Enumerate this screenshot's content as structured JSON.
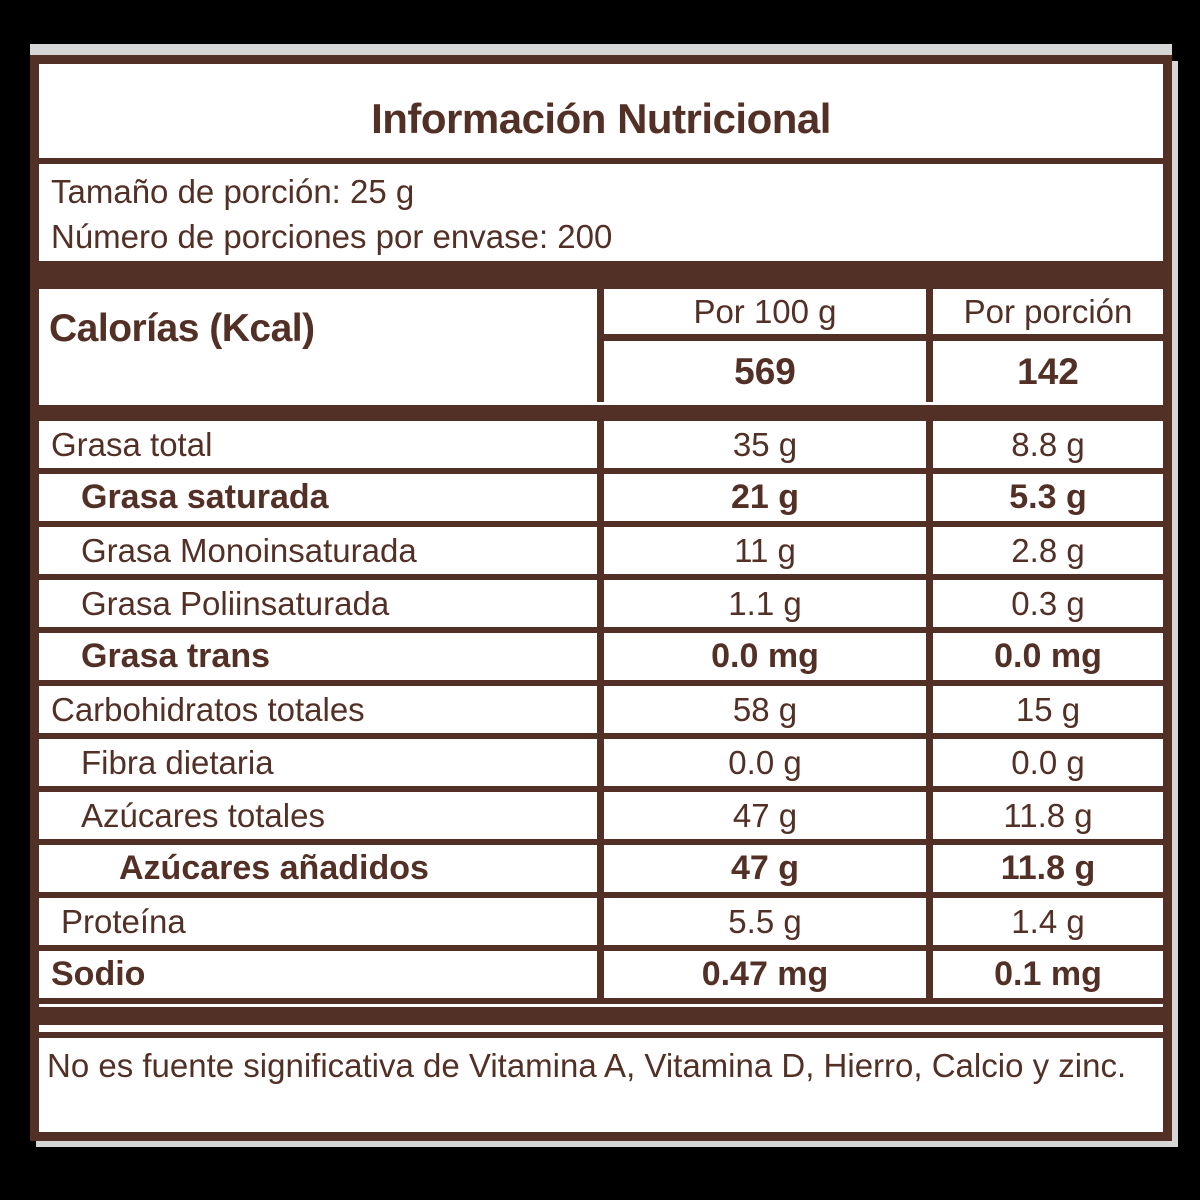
{
  "label": {
    "title": "Información Nutricional",
    "serving": {
      "line1": "Tamaño de porción: 25 g",
      "line2": "Número de porciones por envase: 200"
    },
    "calories": {
      "name": "Calorías (Kcal)",
      "col_per_100g": "Por 100 g",
      "col_per_portion": "Por porción",
      "per_100g": "569",
      "per_portion": "142"
    },
    "table": {
      "rows": [
        {
          "label": "Grasa total",
          "per_100g": "35 g",
          "per_portion": "8.8 g",
          "emphasis": false,
          "indent": 0
        },
        {
          "label": "Grasa saturada",
          "per_100g": "21 g",
          "per_portion": "5.3 g",
          "emphasis": true,
          "indent": 1
        },
        {
          "label": "Grasa Monoinsaturada",
          "per_100g": "11 g",
          "per_portion": "2.8 g",
          "emphasis": false,
          "indent": 1
        },
        {
          "label": "Grasa Poliinsaturada",
          "per_100g": "1.1 g",
          "per_portion": "0.3 g",
          "emphasis": false,
          "indent": 1
        },
        {
          "label": "Grasa trans",
          "per_100g": "0.0 mg",
          "per_portion": "0.0 mg",
          "emphasis": true,
          "indent": 1
        },
        {
          "label": "Carbohidratos totales",
          "per_100g": "58 g",
          "per_portion": "15 g",
          "emphasis": false,
          "indent": 0
        },
        {
          "label": "Fibra dietaria",
          "per_100g": "0.0 g",
          "per_portion": "0.0 g",
          "emphasis": false,
          "indent": 1
        },
        {
          "label": "Azúcares totales",
          "per_100g": "47 g",
          "per_portion": "11.8 g",
          "emphasis": false,
          "indent": 1
        },
        {
          "label": "Azúcares añadidos",
          "per_100g": "47 g",
          "per_portion": "11.8 g",
          "emphasis": true,
          "indent": 2
        },
        {
          "label": "Proteína",
          "per_100g": "5.5 g",
          "per_portion": "1.4 g",
          "emphasis": false,
          "indent": 0
        },
        {
          "label": "Sodio",
          "per_100g": "0.47 mg",
          "per_portion": "0.1 mg",
          "emphasis": true,
          "indent": 0
        }
      ]
    },
    "footnote": "No es fuente significativa de Vitamina A, Vitamina D, Hierro, Calcio y zinc.",
    "colors": {
      "ink_brown": "#533026",
      "paper": "#ffffff",
      "edge_highlight": "#d6d6d6",
      "background": "#000000"
    }
  }
}
